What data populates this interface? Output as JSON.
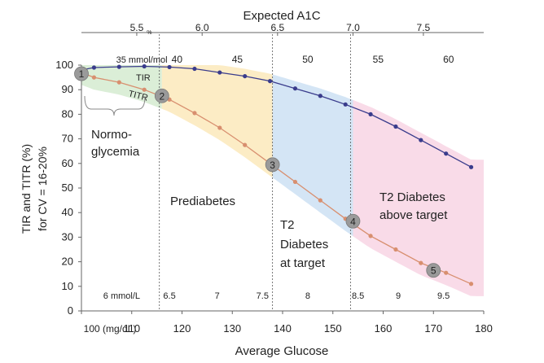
{
  "chart_data": {
    "type": "line",
    "title": "Expected A1C",
    "xlabel": "Average Glucose",
    "ylabel_line1": "TIR and TITR (%)",
    "ylabel_line2": "for CV = 16-20%",
    "xlim": [
      100,
      180
    ],
    "ylim": [
      0,
      100
    ],
    "x_ticks": [
      100,
      110,
      120,
      130,
      140,
      150,
      160,
      170,
      180
    ],
    "x_tick_labels": [
      "100 (mg/dL)",
      "110",
      "120",
      "130",
      "140",
      "150",
      "160",
      "170",
      "180"
    ],
    "y_ticks": [
      0,
      10,
      20,
      30,
      40,
      50,
      60,
      70,
      80,
      90,
      100
    ],
    "y_tick_labels": [
      "0",
      "10",
      "20",
      "30",
      "40",
      "50",
      "60",
      "70",
      "80",
      "90",
      "100"
    ],
    "grid": false,
    "top_axis": {
      "labels": [
        {
          "text": "5.5",
          "x": 111
        },
        {
          "text": "6.0",
          "x": 124
        },
        {
          "text": "6.5",
          "x": 139
        },
        {
          "text": "7.0",
          "x": 154
        },
        {
          "text": "7.5",
          "x": 168
        }
      ],
      "unit": "%",
      "unit_x": 113.5
    },
    "mmol_mol_labels": [
      {
        "text": "35 mmol/mol",
        "x": 112
      },
      {
        "text": "40",
        "x": 119
      },
      {
        "text": "45",
        "x": 131
      },
      {
        "text": "50",
        "x": 145
      },
      {
        "text": "55",
        "x": 159
      },
      {
        "text": "60",
        "x": 173
      }
    ],
    "mmol_l_labels": [
      {
        "text": "6 mmol/L",
        "x": 108
      },
      {
        "text": "6.5",
        "x": 117.5
      },
      {
        "text": "7",
        "x": 127
      },
      {
        "text": "7.5",
        "x": 136
      },
      {
        "text": "8",
        "x": 145
      },
      {
        "text": "8.5",
        "x": 155
      },
      {
        "text": "9",
        "x": 163
      },
      {
        "text": "9.5",
        "x": 172
      }
    ],
    "dashed_lines_x": [
      115.5,
      138,
      153.5
    ],
    "series": [
      {
        "name": "TIR",
        "color": "#3a3c8c",
        "x": [
          100,
          102.5,
          107.5,
          112.5,
          117.5,
          122.5,
          127.5,
          132.5,
          137.5,
          142.5,
          147.5,
          152.5,
          157.5,
          162.5,
          167.5,
          172.5,
          177.5
        ],
        "values": [
          98,
          99,
          99.3,
          99.5,
          99.2,
          98.5,
          97,
          95.5,
          93.5,
          90.5,
          87.5,
          84,
          80,
          75,
          69.5,
          64,
          58.5
        ]
      },
      {
        "name": "TITR",
        "color": "#d88f6f",
        "x": [
          100,
          102.5,
          107.5,
          112.5,
          117.5,
          122.5,
          127.5,
          132.5,
          137.5,
          142.5,
          147.5,
          152.5,
          157.5,
          162.5,
          167.5,
          172.5,
          177.5
        ],
        "values": [
          97,
          95,
          93,
          90,
          86,
          80.5,
          74.5,
          67.5,
          60,
          52.5,
          45,
          37.5,
          30.5,
          25,
          19.5,
          15.5,
          11
        ]
      }
    ],
    "markers": [
      {
        "label": "1",
        "x": 100,
        "y": 96.5
      },
      {
        "label": "2",
        "x": 116,
        "y": 87.5
      },
      {
        "label": "3",
        "x": 138,
        "y": 59.5
      },
      {
        "label": "4",
        "x": 154,
        "y": 36.5
      },
      {
        "label": "5",
        "x": 170,
        "y": 16.5
      }
    ],
    "bands": [
      {
        "name": "normoglycemia",
        "color": "#cfe8c9",
        "x_start": 100,
        "x_end": 116
      },
      {
        "name": "prediabetes",
        "color": "#fbe6b2",
        "x_start": 116,
        "x_end": 138
      },
      {
        "name": "t2-at-target",
        "color": "#c6dcf2",
        "x_start": 138,
        "x_end": 154
      },
      {
        "name": "t2-above-target",
        "color": "#f7cfe0",
        "x_start": 154,
        "x_end": 180
      }
    ],
    "annotations": {
      "tir_label": "TIR",
      "titr_label": "TITR",
      "normo_line1": "Normo-",
      "normo_line2": "glycemia",
      "prediabetes": "Prediabetes",
      "t2_target_line1": "T2",
      "t2_target_line2": "Diabetes",
      "t2_target_line3": "at target",
      "t2_above_line1": "T2 Diabetes",
      "t2_above_line2": "above target"
    }
  }
}
